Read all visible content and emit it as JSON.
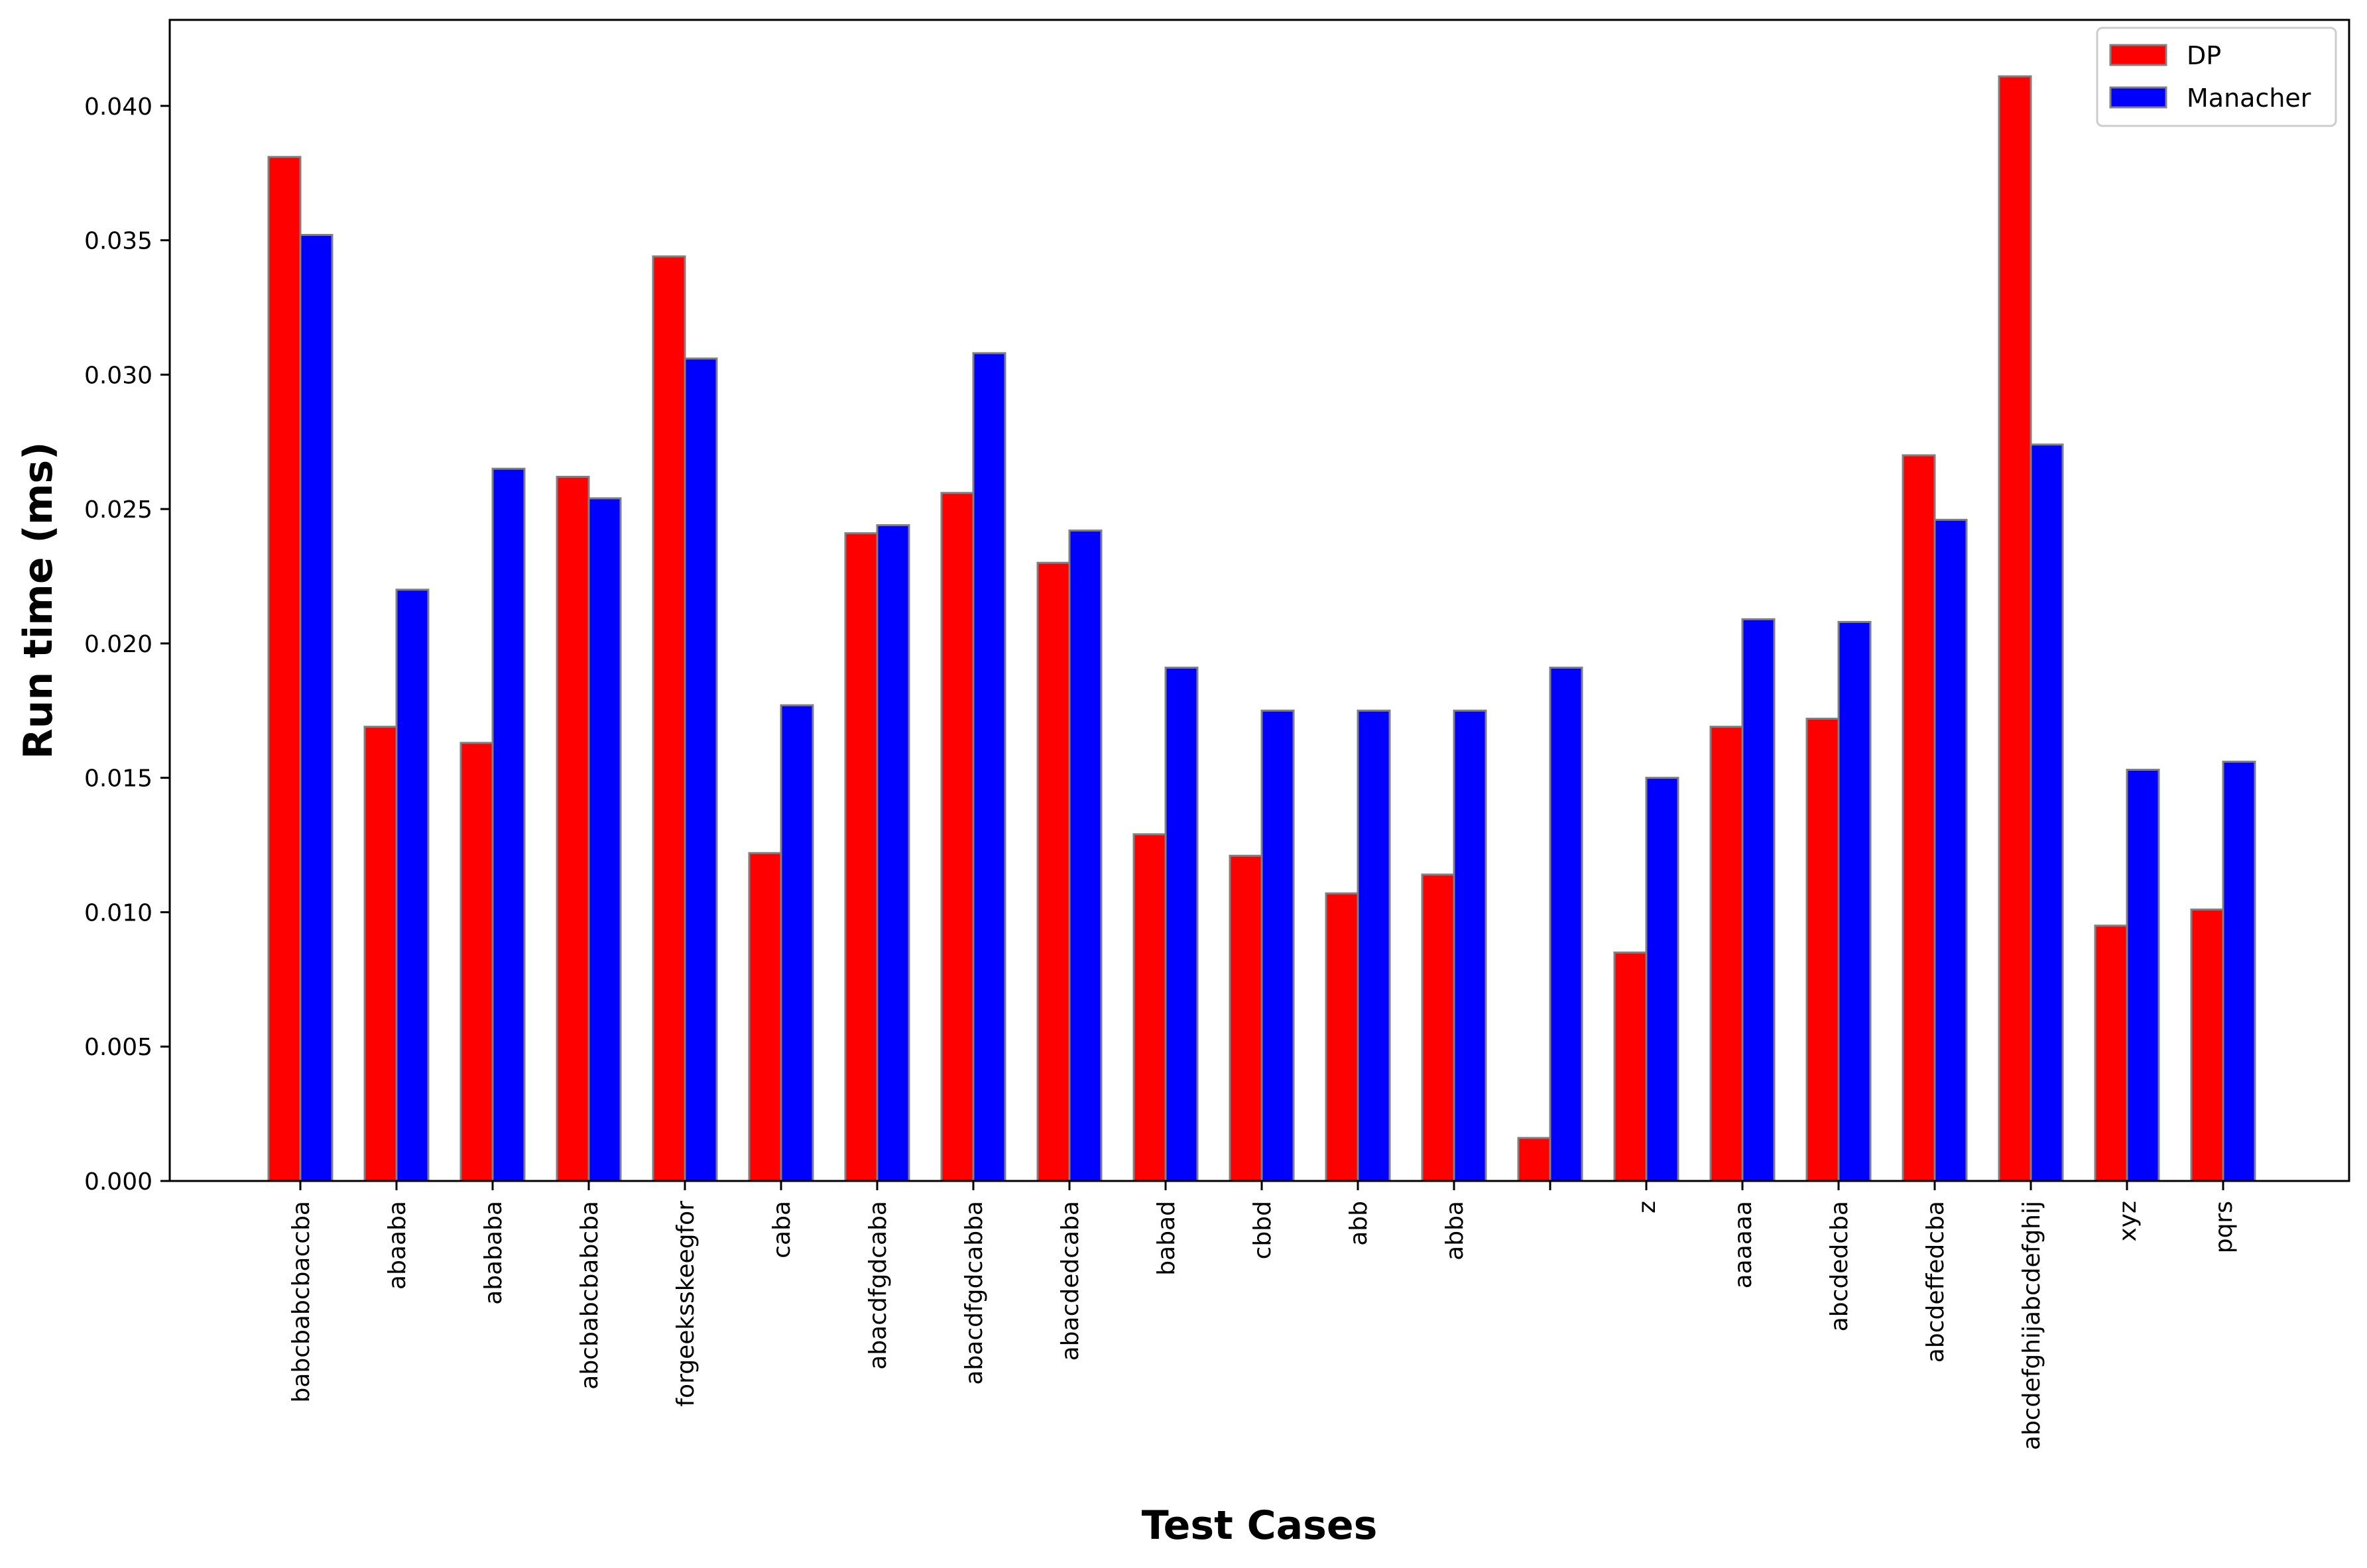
{
  "chart_data": {
    "type": "bar",
    "title": "",
    "xlabel": "Test Cases",
    "ylabel": "Run time (ms)",
    "ylim": [
      0,
      0.0432
    ],
    "yticks": [
      "0.000",
      "0.005",
      "0.010",
      "0.015",
      "0.020",
      "0.025",
      "0.030",
      "0.035",
      "0.040"
    ],
    "grid": false,
    "legend_position": "top-right",
    "categories": [
      "babcbabcbaccba",
      "abaaba",
      "abababa",
      "abcbabcbabcba",
      "forgeeksskeegfor",
      "caba",
      "abacdfgdcaba",
      "abacdfgdcabba",
      "abacdedcaba",
      "babad",
      "cbbd",
      "abb",
      "abba",
      "",
      "z",
      "aaaaaa",
      "abcdedcba",
      "abcdeffedcba",
      "abcdefghijabcdefghij",
      "xyz",
      "pqrs"
    ],
    "series": [
      {
        "name": "DP",
        "color": "#ff0000",
        "values": [
          0.0381,
          0.0169,
          0.0163,
          0.0262,
          0.0344,
          0.0122,
          0.0241,
          0.0256,
          0.023,
          0.0129,
          0.0121,
          0.0107,
          0.0114,
          0.0016,
          0.0085,
          0.0169,
          0.0172,
          0.027,
          0.0411,
          0.0095,
          0.0101
        ]
      },
      {
        "name": "Manacher",
        "color": "#0000ff",
        "values": [
          0.0352,
          0.022,
          0.0265,
          0.0254,
          0.0306,
          0.0177,
          0.0244,
          0.0308,
          0.0242,
          0.0191,
          0.0175,
          0.0175,
          0.0175,
          0.0191,
          0.015,
          0.0209,
          0.0208,
          0.0246,
          0.0274,
          0.0153,
          0.0156
        ]
      }
    ]
  }
}
